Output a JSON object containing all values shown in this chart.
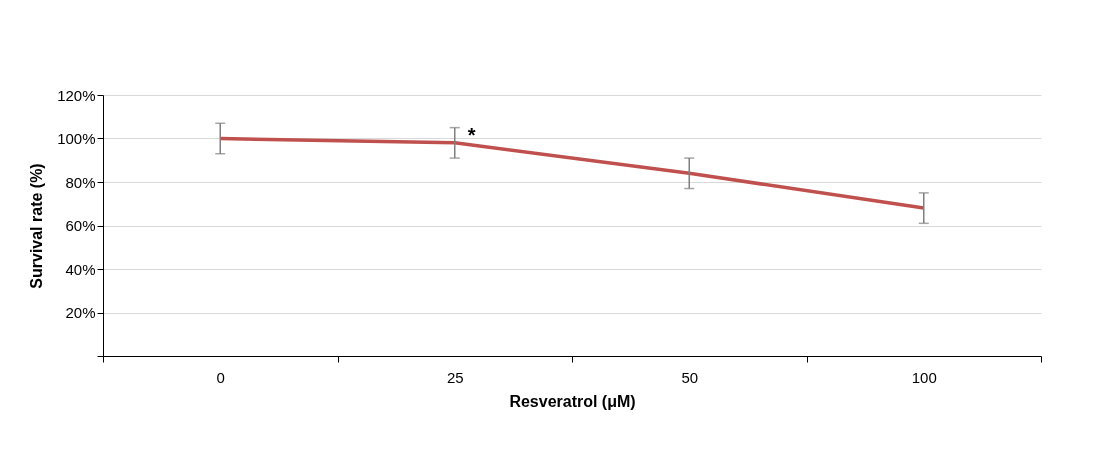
{
  "chart_data": {
    "type": "line",
    "xlabel": "Resveratrol (μM)",
    "ylabel": "Survival rate (%)",
    "categories": [
      "0",
      "25",
      "50",
      "100"
    ],
    "series": [
      {
        "color": "#c0504d",
        "values": [
          100,
          98,
          84,
          68
        ],
        "errors": [
          7,
          7,
          7,
          7
        ]
      }
    ],
    "ylim": [
      0,
      120
    ],
    "yticks": [
      {
        "value": 0,
        "label": null
      },
      {
        "value": 20,
        "label": "20%"
      },
      {
        "value": 40,
        "label": "40%"
      },
      {
        "value": 60,
        "label": "60%"
      },
      {
        "value": 80,
        "label": "80%"
      },
      {
        "value": 100,
        "label": "100%"
      },
      {
        "value": 120,
        "label": "120%"
      }
    ],
    "grid": "y",
    "marker": "none",
    "line_style": "solid",
    "annotations": [
      {
        "text": "*",
        "x": "25",
        "y": 105
      }
    ]
  }
}
